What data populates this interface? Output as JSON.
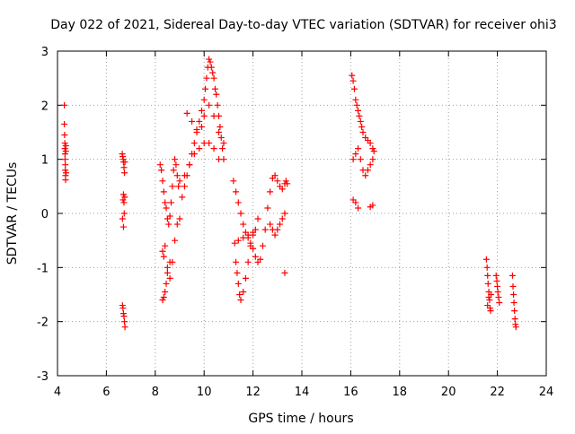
{
  "chart_data": {
    "type": "scatter",
    "title": "Day 022 of 2021, Sidereal Day-to-day VTEC variation (SDTVAR) for receiver ohi3",
    "xlabel": "GPS time / hours",
    "ylabel": "SDTVAR / TECUs",
    "xlim": [
      4,
      24
    ],
    "ylim": [
      -3,
      3
    ],
    "xticks": [
      4,
      6,
      8,
      10,
      12,
      14,
      16,
      18,
      20,
      22,
      24
    ],
    "yticks": [
      -3,
      -2,
      -1,
      0,
      1,
      2,
      3
    ],
    "grid": true,
    "marker": "plus",
    "color": "#ff0000",
    "series": [
      {
        "name": "segment-4.3",
        "x": [
          4.28,
          4.28,
          4.29,
          4.3,
          4.3,
          4.31,
          4.31,
          4.32,
          4.32,
          4.33,
          4.33,
          4.34,
          4.34,
          4.35
        ],
        "y": [
          2.0,
          1.65,
          1.45,
          1.3,
          1.2,
          1.1,
          1.0,
          0.9,
          0.8,
          0.7,
          0.62,
          1.25,
          1.15,
          0.75
        ]
      },
      {
        "name": "segment-6.7a",
        "x": [
          6.65,
          6.67,
          6.69,
          6.7,
          6.72,
          6.74,
          6.76,
          6.7,
          6.68,
          6.72,
          6.75,
          6.66,
          6.7,
          6.73
        ],
        "y": [
          1.1,
          1.05,
          1.0,
          0.95,
          0.85,
          0.75,
          0.95,
          0.35,
          0.25,
          0.2,
          0.3,
          -0.1,
          -0.25,
          0.0
        ]
      },
      {
        "name": "segment-6.7b",
        "x": [
          6.66,
          6.68,
          6.7,
          6.72,
          6.74,
          6.76
        ],
        "y": [
          -1.7,
          -1.75,
          -1.85,
          -1.9,
          -2.0,
          -2.1
        ]
      },
      {
        "name": "segment-8-9",
        "x": [
          8.2,
          8.25,
          8.3,
          8.35,
          8.4,
          8.45,
          8.5,
          8.55,
          8.6,
          8.65,
          8.7,
          8.75,
          8.8,
          8.85,
          8.9,
          8.95,
          9.0,
          8.3,
          8.35,
          8.4,
          8.5,
          8.6,
          8.7,
          8.8,
          8.9,
          9.0,
          8.3,
          8.35,
          8.4,
          8.45,
          8.5,
          8.6
        ],
        "y": [
          0.9,
          0.8,
          0.6,
          0.4,
          0.2,
          0.1,
          -0.1,
          -0.2,
          -0.05,
          0.2,
          0.5,
          0.8,
          1.0,
          0.9,
          0.7,
          0.5,
          0.6,
          -0.7,
          -0.8,
          -0.6,
          -1.0,
          -1.2,
          -0.9,
          -0.5,
          -0.2,
          -0.1,
          -1.6,
          -1.55,
          -1.45,
          -1.3,
          -1.1,
          -0.9
        ]
      },
      {
        "name": "segment-9-10.8",
        "x": [
          9.1,
          9.2,
          9.3,
          9.4,
          9.5,
          9.6,
          9.7,
          9.8,
          9.9,
          10.0,
          10.05,
          10.1,
          10.15,
          10.2,
          10.25,
          10.3,
          10.35,
          10.4,
          10.45,
          10.5,
          10.55,
          10.6,
          10.65,
          10.7,
          10.75,
          10.8,
          9.3,
          9.5,
          9.7,
          9.9,
          10.0,
          10.2,
          10.4,
          10.6,
          10.8,
          9.2,
          9.4,
          9.6,
          9.8,
          10.0,
          10.2,
          10.4,
          10.6
        ],
        "y": [
          0.3,
          0.5,
          0.7,
          0.9,
          1.1,
          1.3,
          1.5,
          1.7,
          1.9,
          2.1,
          2.3,
          2.5,
          2.7,
          2.85,
          2.8,
          2.7,
          2.6,
          2.5,
          2.3,
          2.2,
          2.0,
          1.8,
          1.6,
          1.4,
          1.2,
          1.0,
          1.85,
          1.7,
          1.55,
          1.6,
          1.8,
          2.0,
          1.8,
          1.5,
          1.3,
          0.7,
          0.9,
          1.1,
          1.2,
          1.3,
          1.3,
          1.2,
          1.0
        ]
      },
      {
        "name": "segment-11-12.5",
        "x": [
          11.2,
          11.3,
          11.4,
          11.5,
          11.6,
          11.7,
          11.8,
          11.9,
          12.0,
          12.1,
          12.2,
          12.3,
          12.4,
          12.5,
          11.3,
          11.35,
          11.4,
          11.45,
          11.5,
          11.6,
          11.7,
          11.8,
          11.9,
          12.0,
          12.1,
          11.25,
          11.4,
          11.6,
          11.8,
          12.0,
          12.2
        ],
        "y": [
          0.6,
          0.4,
          0.2,
          0.0,
          -0.2,
          -0.35,
          -0.45,
          -0.55,
          -0.65,
          -0.8,
          -0.9,
          -0.85,
          -0.6,
          -0.3,
          -0.9,
          -1.1,
          -1.3,
          -1.5,
          -1.6,
          -1.45,
          -1.2,
          -0.9,
          -0.6,
          -0.4,
          -0.3,
          -0.55,
          -0.5,
          -0.45,
          -0.4,
          -0.35,
          -0.1
        ]
      },
      {
        "name": "segment-12.5-13.4",
        "x": [
          12.6,
          12.7,
          12.8,
          12.9,
          13.0,
          13.1,
          13.2,
          13.3,
          13.35,
          13.4,
          12.7,
          12.8,
          12.9,
          13.0,
          13.1,
          13.2,
          13.3,
          13.3
        ],
        "y": [
          0.1,
          0.4,
          0.65,
          0.7,
          0.6,
          0.5,
          0.45,
          0.55,
          0.6,
          0.55,
          -0.2,
          -0.3,
          -0.4,
          -0.3,
          -0.2,
          -0.1,
          0.0,
          -1.1
        ]
      },
      {
        "name": "segment-16-17",
        "x": [
          16.05,
          16.1,
          16.15,
          16.2,
          16.25,
          16.3,
          16.35,
          16.4,
          16.45,
          16.5,
          16.6,
          16.7,
          16.8,
          16.9,
          16.95,
          16.1,
          16.2,
          16.3,
          16.4,
          16.5,
          16.6,
          16.7,
          16.8,
          16.9,
          16.1,
          16.2,
          16.3,
          16.8,
          16.9
        ],
        "y": [
          2.55,
          2.45,
          2.3,
          2.1,
          2.0,
          1.9,
          1.8,
          1.7,
          1.6,
          1.5,
          1.4,
          1.35,
          1.3,
          1.2,
          1.15,
          1.0,
          1.1,
          1.2,
          1.0,
          0.8,
          0.7,
          0.8,
          0.9,
          1.0,
          0.25,
          0.2,
          0.1,
          0.12,
          0.15
        ]
      },
      {
        "name": "segment-21.6",
        "x": [
          21.55,
          21.58,
          21.6,
          21.62,
          21.65,
          21.68,
          21.7,
          21.72,
          21.74,
          21.6,
          21.65
        ],
        "y": [
          -0.85,
          -1.0,
          -1.15,
          -1.3,
          -1.45,
          -1.6,
          -1.75,
          -1.8,
          -1.5,
          -1.7,
          -1.55
        ]
      },
      {
        "name": "segment-22",
        "x": [
          21.95,
          21.98,
          22.0,
          22.02,
          22.05,
          22.08
        ],
        "y": [
          -1.15,
          -1.25,
          -1.35,
          -1.45,
          -1.55,
          -1.65
        ]
      },
      {
        "name": "segment-22.7",
        "x": [
          22.62,
          22.64,
          22.66,
          22.68,
          22.7,
          22.72,
          22.74,
          22.76
        ],
        "y": [
          -1.15,
          -1.35,
          -1.5,
          -1.65,
          -1.8,
          -1.95,
          -2.05,
          -2.1
        ]
      }
    ]
  }
}
